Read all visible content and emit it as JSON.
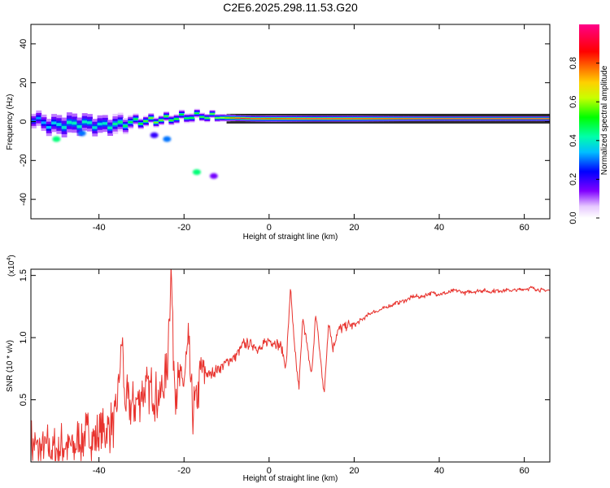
{
  "title": "C2E6.2025.298.11.53.G20",
  "colors": {
    "snr_line": "#e8332e",
    "axis": "#000000",
    "gas_band": "#2a2a2a"
  },
  "chart_data": [
    {
      "type": "heatmap",
      "xlabel": "Height of straight line (km)",
      "ylabel": "Frequency (Hz)",
      "xlim": [
        -56,
        66
      ],
      "ylim": [
        -50,
        50
      ],
      "xticks": [
        -40,
        -20,
        0,
        20,
        40,
        60
      ],
      "xtick_labels": [
        "-40",
        "-20",
        "0",
        "20",
        "40",
        "60"
      ],
      "yticks": [
        -40,
        -20,
        0,
        20,
        40
      ],
      "ytick_labels": [
        "-40",
        "-20",
        "0",
        "20",
        "40"
      ],
      "colorbar": {
        "label": "Normalized spectral amplitude",
        "range": [
          0,
          1
        ],
        "ticks": [
          0.0,
          0.2,
          0.4,
          0.6,
          0.8
        ],
        "tick_labels": [
          "0.0",
          "0.2",
          "0.4",
          "0.6",
          "0.8"
        ]
      },
      "ridge": {
        "x": [
          -56,
          -52,
          -48,
          -44,
          -40,
          -36,
          -32,
          -28,
          -24,
          -20,
          -16,
          -12,
          -8,
          -4,
          0,
          10,
          20,
          30,
          40,
          50,
          60,
          66
        ],
        "freq": [
          1.5,
          -2,
          -1.5,
          -1,
          -2,
          -1.5,
          0,
          0.5,
          1.5,
          2.5,
          3,
          2,
          1.8,
          1.5,
          1.5,
          1.5,
          1.5,
          1.5,
          1.5,
          1.5,
          1.5,
          1.5
        ],
        "amplitude": [
          0.3,
          0.35,
          0.4,
          0.4,
          0.38,
          0.45,
          0.5,
          0.6,
          0.55,
          0.5,
          0.55,
          0.6,
          0.9,
          0.9,
          0.85,
          0.95,
          0.9,
          0.9,
          0.95,
          0.95,
          0.95,
          0.95
        ],
        "spread_hz": [
          5,
          6,
          7,
          6,
          6,
          5,
          3,
          2.5,
          2.5,
          2.5,
          2.2,
          2,
          1.5,
          1.5,
          1.6,
          1.5,
          1.5,
          1.3,
          1.2,
          1.2,
          1.2,
          1.2
        ]
      },
      "blobs": [
        {
          "x": -24,
          "freq": -9,
          "amplitude": 0.3
        },
        {
          "x": -27,
          "freq": -7,
          "amplitude": 0.2
        },
        {
          "x": -17,
          "freq": -26,
          "amplitude": 0.45
        },
        {
          "x": -13,
          "freq": -28,
          "amplitude": 0.15
        },
        {
          "x": -50,
          "freq": -9,
          "amplitude": 0.45
        },
        {
          "x": -44,
          "freq": -6,
          "amplitude": 0.3
        }
      ]
    },
    {
      "type": "line",
      "xlabel": "Height of straight line (km)",
      "ylabel": "SNR (10 * v/v)",
      "yscale_label": "(x10",
      "yscale_exponent": "4",
      "yscale_close": ")",
      "xlim": [
        -56,
        66
      ],
      "ylim": [
        0,
        1.55
      ],
      "xticks": [
        -40,
        -20,
        0,
        20,
        40,
        60
      ],
      "xtick_labels": [
        "-40",
        "-20",
        "0",
        "20",
        "40",
        "60"
      ],
      "yticks": [
        0.5,
        1.0,
        1.5
      ],
      "ytick_labels": [
        "0.5",
        "1.0",
        "1.5"
      ],
      "series": [
        {
          "name": "SNR",
          "x": [
            -56,
            -54,
            -52,
            -50,
            -48,
            -46,
            -44,
            -42,
            -40,
            -38,
            -36,
            -35,
            -34.5,
            -34,
            -32,
            -30,
            -28,
            -26,
            -24,
            -23.5,
            -23,
            -22.5,
            -22,
            -20,
            -19,
            -18,
            -17,
            -16,
            -14,
            -12,
            -10,
            -8,
            -6,
            -4,
            -2,
            -1,
            0,
            2,
            3,
            4,
            5,
            6,
            7,
            8,
            9,
            10,
            11,
            12,
            13,
            14,
            15,
            16,
            18,
            20,
            22,
            24,
            26,
            28,
            30,
            32,
            34,
            36,
            38,
            40,
            42,
            44,
            46,
            48,
            50,
            52,
            54,
            56,
            58,
            60,
            62,
            64,
            66
          ],
          "y": [
            0.15,
            0.1,
            0.12,
            0.1,
            0.14,
            0.12,
            0.2,
            0.22,
            0.2,
            0.25,
            0.35,
            0.8,
            1.0,
            0.5,
            0.45,
            0.55,
            0.6,
            0.5,
            0.7,
            1.2,
            1.55,
            0.9,
            0.6,
            0.65,
            0.95,
            0.4,
            0.5,
            0.75,
            0.7,
            0.75,
            0.8,
            0.85,
            0.95,
            0.95,
            0.9,
            0.95,
            0.98,
            0.95,
            0.92,
            0.75,
            1.4,
            0.9,
            0.6,
            1.18,
            0.9,
            0.7,
            1.2,
            0.85,
            0.55,
            1.15,
            0.9,
            1.05,
            1.1,
            1.1,
            1.15,
            1.2,
            1.22,
            1.25,
            1.28,
            1.3,
            1.33,
            1.33,
            1.36,
            1.35,
            1.36,
            1.38,
            1.36,
            1.37,
            1.38,
            1.37,
            1.38,
            1.38,
            1.38,
            1.39,
            1.4,
            1.38,
            1.38
          ]
        }
      ]
    }
  ]
}
